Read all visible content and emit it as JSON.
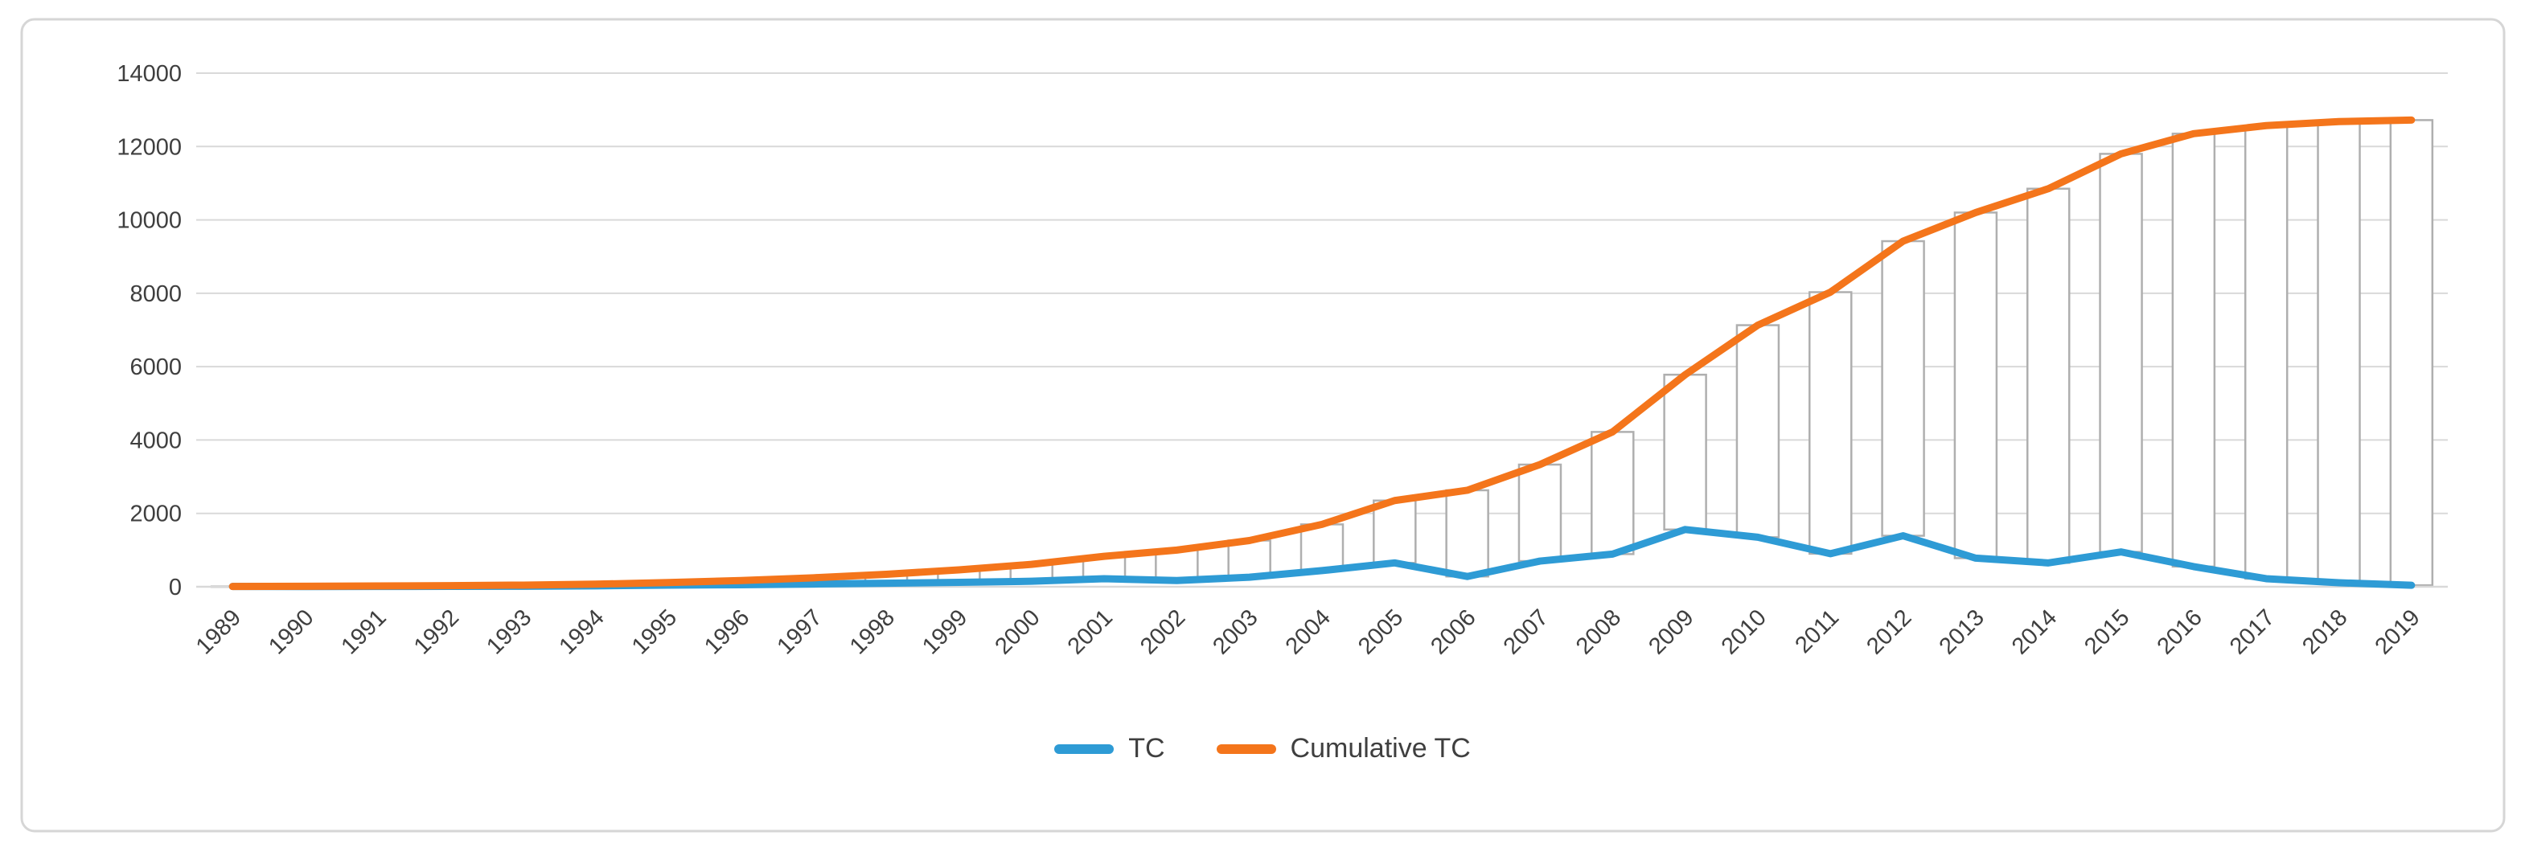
{
  "figure": {
    "title": "",
    "background_color": "#FFFFFF",
    "border_color": "#D6D6D6",
    "text_color": "#3f3f3f",
    "gridline_color": "#D9D9D9",
    "axis_line_color": "#D9D9D9",
    "updown_bar_fill": "#FFFFFF",
    "updown_bar_border": "#AFAFAF"
  },
  "legend": {
    "items": [
      {
        "label": "TC",
        "color": "#2E9BD5"
      },
      {
        "label": "Cumulative TC",
        "color": "#F4751B"
      }
    ]
  },
  "chart_data": {
    "type": "line",
    "title": "",
    "xlabel": "",
    "ylabel": "",
    "categories": [
      "1989",
      "1990",
      "1991",
      "1992",
      "1993",
      "1994",
      "1995",
      "1996",
      "1997",
      "1998",
      "1999",
      "2000",
      "2001",
      "2002",
      "2003",
      "2004",
      "2005",
      "2006",
      "2007",
      "2008",
      "2009",
      "2010",
      "2011",
      "2012",
      "2013",
      "2014",
      "2015",
      "2016",
      "2017",
      "2018",
      "2019"
    ],
    "series": [
      {
        "name": "TC",
        "color": "#2E9BD5",
        "values": [
          8,
          5,
          8,
          10,
          14,
          25,
          45,
          55,
          75,
          95,
          120,
          150,
          220,
          170,
          260,
          440,
          650,
          280,
          700,
          890,
          1560,
          1350,
          900,
          1390,
          780,
          650,
          950,
          550,
          220,
          110,
          40
        ]
      },
      {
        "name": "Cumulative TC",
        "color": "#F4751B",
        "values": [
          8,
          13,
          21,
          31,
          45,
          70,
          115,
          170,
          245,
          340,
          460,
          610,
          830,
          1000,
          1260,
          1700,
          2350,
          2630,
          3330,
          4220,
          5780,
          7130,
          8030,
          9420,
          10200,
          10850,
          11800,
          12350,
          12570,
          12680,
          12720
        ]
      }
    ],
    "ylim": [
      0,
      14000
    ],
    "yticks": [
      0,
      2000,
      4000,
      6000,
      8000,
      10000,
      12000,
      14000
    ],
    "ytick_labels": [
      "0",
      "2000",
      "4000",
      "6000",
      "8000",
      "10000",
      "12000",
      "14000"
    ],
    "grid": "horizontal",
    "x_tick_rotation_deg": 45,
    "legend_position": "bottom-center",
    "high_low_lines": true
  }
}
